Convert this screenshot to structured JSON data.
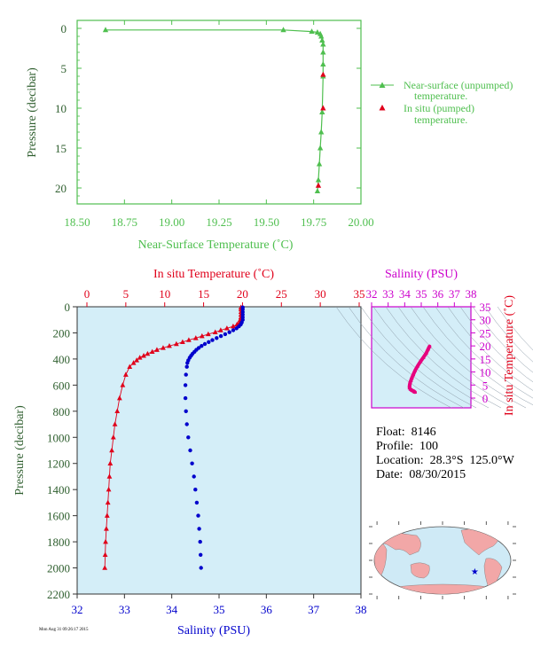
{
  "colors": {
    "top_green": "#4fbf4f",
    "dark_green": "#2f5f2f",
    "temp_red": "#e0001a",
    "sal_blue": "#0000cc",
    "ts_magenta": "#cc00cc",
    "ts_pink": "#e6007e",
    "plot_bg": "#d4eef8"
  },
  "info": {
    "float": "Float:  8146",
    "profile": "Profile:  100",
    "location": "Location:  28.3°S  125.0°W",
    "date": "Date:  08/30/2015"
  },
  "stamp": "Mon Aug 31 09:26:17 2015",
  "chart_data": [
    {
      "id": "near-surface-temperature",
      "type": "line",
      "xlabel": "Near-Surface Temperature (˚C)",
      "ylabel": "Pressure (decibar)",
      "xlim": [
        18.5,
        20.0
      ],
      "ylim": [
        22,
        -1
      ],
      "xticks": [
        "18.50",
        "18.75",
        "19.00",
        "19.25",
        "19.50",
        "19.75",
        "20.00"
      ],
      "yticks": [
        "0",
        "5",
        "10",
        "15",
        "20"
      ],
      "legend": [
        "Near-surface (unpumped)",
        "temperature.",
        "In situ (pumped)",
        "temperature."
      ],
      "series": [
        {
          "name": "Near-surface (unpumped) temperature.",
          "x": [
            18.65,
            19.59,
            19.74,
            19.77,
            19.785,
            19.79,
            19.795,
            19.8,
            19.8,
            19.8,
            19.8,
            19.795,
            19.79,
            19.785,
            19.78,
            19.775,
            19.77
          ],
          "y": [
            0.2,
            0.2,
            0.4,
            0.5,
            0.7,
            1.0,
            1.5,
            2.0,
            3.0,
            4.5,
            6.0,
            10.5,
            13.0,
            15.0,
            17.0,
            19.0,
            20.4
          ]
        },
        {
          "name": "In situ (pumped) temperature.",
          "x": [
            19.8,
            19.8,
            19.775
          ],
          "y": [
            5.8,
            10.0,
            19.7
          ]
        }
      ]
    },
    {
      "id": "profile",
      "type": "scatter",
      "x2label": "In situ Temperature (˚C)",
      "xlabel": "Salinity (PSU)",
      "ylabel": "Pressure (decibar)",
      "x2lim": [
        -2,
        35
      ],
      "xlim": [
        32,
        38
      ],
      "ylim": [
        2200,
        0
      ],
      "x2ticks": [
        "0",
        "5",
        "10",
        "15",
        "20",
        "25",
        "30",
        "35"
      ],
      "xticks": [
        "32",
        "33",
        "34",
        "35",
        "36",
        "37",
        "38"
      ],
      "yticks": [
        "0",
        "200",
        "400",
        "600",
        "800",
        "1000",
        "1200",
        "1400",
        "1600",
        "1800",
        "2000",
        "2200"
      ],
      "series": [
        {
          "name": "In situ Temperature (˚C)",
          "p": [
            5,
            20,
            40,
            60,
            80,
            100,
            120,
            135,
            150,
            165,
            180,
            195,
            210,
            225,
            240,
            255,
            270,
            285,
            300,
            315,
            330,
            345,
            360,
            375,
            390,
            410,
            430,
            460,
            520,
            600,
            700,
            800,
            900,
            1000,
            1100,
            1200,
            1300,
            1400,
            1500,
            1600,
            1700,
            1800,
            1900,
            2000
          ],
          "values": [
            19.8,
            19.8,
            19.8,
            19.8,
            19.8,
            19.7,
            19.6,
            19.3,
            18.8,
            18.0,
            17.2,
            16.5,
            15.6,
            14.8,
            14.0,
            13.1,
            12.3,
            11.5,
            10.6,
            9.8,
            9.0,
            8.4,
            7.8,
            7.3,
            6.8,
            6.4,
            6.0,
            5.5,
            5.0,
            4.6,
            4.2,
            3.9,
            3.6,
            3.4,
            3.2,
            3.0,
            2.9,
            2.8,
            2.7,
            2.6,
            2.5,
            2.4,
            2.35,
            2.3
          ]
        },
        {
          "name": "Salinity (PSU)",
          "p": [
            5,
            20,
            40,
            60,
            80,
            100,
            120,
            135,
            150,
            165,
            180,
            195,
            210,
            225,
            240,
            255,
            270,
            285,
            300,
            315,
            330,
            345,
            360,
            375,
            390,
            410,
            430,
            460,
            520,
            600,
            700,
            800,
            900,
            1000,
            1100,
            1200,
            1300,
            1400,
            1500,
            1600,
            1700,
            1800,
            1900,
            2000
          ],
          "values": [
            35.5,
            35.5,
            35.5,
            35.5,
            35.5,
            35.5,
            35.48,
            35.46,
            35.42,
            35.37,
            35.3,
            35.22,
            35.13,
            35.04,
            34.95,
            34.86,
            34.78,
            34.7,
            34.63,
            34.57,
            34.52,
            34.48,
            34.44,
            34.41,
            34.38,
            34.35,
            34.33,
            34.32,
            34.3,
            34.29,
            34.29,
            34.3,
            34.32,
            34.35,
            34.39,
            34.43,
            34.47,
            34.5,
            34.53,
            34.56,
            34.58,
            34.6,
            34.61,
            34.62
          ]
        }
      ]
    },
    {
      "id": "ts-diagram",
      "type": "scatter",
      "xlabel": "Salinity (PSU)",
      "ylabel": "In situ Temperature (˚C)",
      "xlim": [
        32,
        38
      ],
      "ylim": [
        -2,
        35
      ],
      "xticks": [
        "32",
        "33",
        "34",
        "35",
        "36",
        "37",
        "38"
      ],
      "yticks": [
        "0",
        "5",
        "10",
        "15",
        "20",
        "25",
        "30",
        "35"
      ],
      "series": [
        {
          "name": "T-S",
          "x": [
            35.5,
            35.42,
            35.3,
            35.13,
            34.95,
            34.78,
            34.63,
            34.52,
            34.44,
            34.38,
            34.33,
            34.3,
            34.29,
            34.3,
            34.35,
            34.43,
            34.5,
            34.56,
            34.6,
            34.62
          ],
          "y": [
            19.8,
            18.8,
            17.2,
            15.6,
            14.0,
            12.3,
            10.6,
            9.0,
            7.8,
            6.8,
            6.0,
            5.0,
            4.2,
            3.9,
            3.4,
            3.0,
            2.8,
            2.6,
            2.4,
            2.3
          ]
        }
      ]
    },
    {
      "id": "location-map",
      "type": "map",
      "marker": {
        "lat": -28.3,
        "lon": -125.0
      }
    }
  ]
}
